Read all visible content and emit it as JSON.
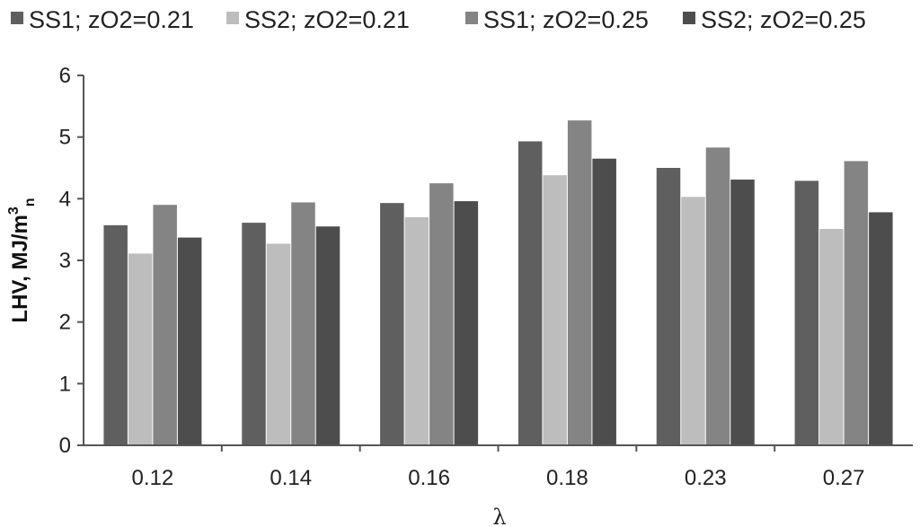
{
  "chart_data": {
    "type": "bar",
    "categories": [
      "0.12",
      "0.14",
      "0.16",
      "0.18",
      "0.23",
      "0.27"
    ],
    "series": [
      {
        "name": "SS1; zO2=0.21",
        "color": "#5f5f5f",
        "values": [
          3.57,
          3.61,
          3.93,
          4.93,
          4.5,
          4.29
        ]
      },
      {
        "name": "SS2; zO2=0.21",
        "color": "#bdbdbd",
        "values": [
          3.11,
          3.27,
          3.7,
          4.38,
          4.03,
          3.51
        ]
      },
      {
        "name": "SS1; zO2=0.25",
        "color": "#848484",
        "values": [
          3.9,
          3.94,
          4.25,
          5.27,
          4.83,
          4.61
        ]
      },
      {
        "name": "SS2; zO2=0.25",
        "color": "#4d4d4d",
        "values": [
          3.37,
          3.55,
          3.96,
          4.65,
          4.31,
          3.78
        ]
      }
    ],
    "xlabel": "λ",
    "ylabel": {
      "main": "LHV, MJ/m",
      "sup": "3",
      "sub": "n"
    },
    "ylim": [
      0,
      6
    ],
    "yticks": [
      "0",
      "1",
      "2",
      "3",
      "4",
      "5",
      "6"
    ],
    "legend_position": "top",
    "grid": false
  }
}
